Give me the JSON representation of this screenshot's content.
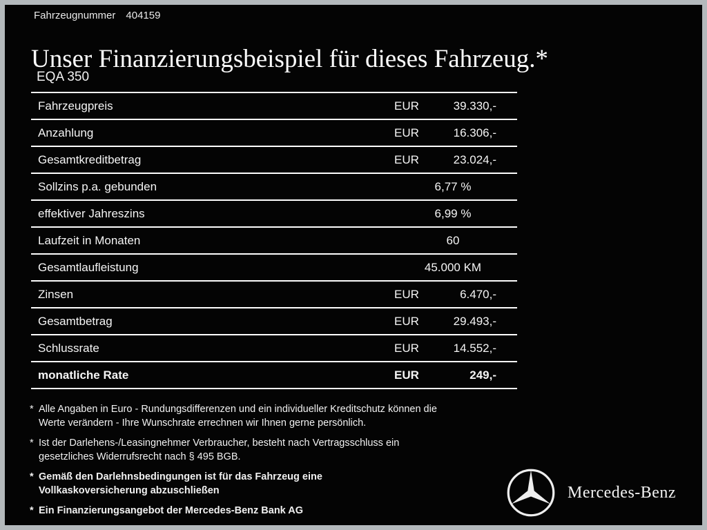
{
  "header": {
    "vehicle_number_label": "Fahrzeugnummer",
    "vehicle_number": "404159",
    "title": "Unser Finanzierungsbeispiel für dieses Fahrzeug.*",
    "model": "EQA 350"
  },
  "table": {
    "rows": [
      {
        "label": "Fahrzeugpreis",
        "currency": "EUR",
        "value": "39.330,-",
        "align": "right",
        "bold": false
      },
      {
        "label": "Anzahlung",
        "currency": "EUR",
        "value": "16.306,-",
        "align": "right",
        "bold": false
      },
      {
        "label": "Gesamtkreditbetrag",
        "currency": "EUR",
        "value": "23.024,-",
        "align": "right",
        "bold": false
      },
      {
        "label": "Sollzins p.a. gebunden",
        "value": "6,77 %",
        "align": "center",
        "bold": false
      },
      {
        "label": "effektiver Jahreszins",
        "value": "6,99 %",
        "align": "center",
        "bold": false
      },
      {
        "label": "Laufzeit in Monaten",
        "value": "60",
        "align": "center",
        "bold": false
      },
      {
        "label": "Gesamtlaufleistung",
        "value": "45.000 KM",
        "align": "center",
        "bold": false
      },
      {
        "label": "Zinsen",
        "currency": "EUR",
        "value": "6.470,-",
        "align": "right",
        "bold": false
      },
      {
        "label": "Gesamtbetrag",
        "currency": "EUR",
        "value": "29.493,-",
        "align": "right",
        "bold": false
      },
      {
        "label": "Schlussrate",
        "currency": "EUR",
        "value": "14.552,-",
        "align": "right",
        "bold": false
      },
      {
        "label": "monatliche Rate",
        "currency": "EUR",
        "value": "249,-",
        "align": "right",
        "bold": true
      }
    ]
  },
  "footnotes": [
    {
      "marker": "*",
      "text": "Alle Angaben in Euro - Rundungsdifferenzen und ein individueller Kreditschutz können die\nWerte verändern - Ihre Wunschrate errechnen wir Ihnen gerne persönlich.",
      "bold": false
    },
    {
      "marker": "*",
      "text": "Ist der Darlehens-/Leasingnehmer Verbraucher, besteht nach Vertragsschluss ein\ngesetzliches Widerrufsrecht nach § 495 BGB.",
      "bold": false
    },
    {
      "marker": "*",
      "text": "Gemäß den Darlehnsbedingungen ist für das Fahrzeug eine\nVollkaskoversicherung abzuschließen",
      "bold": true
    },
    {
      "marker": "*",
      "text": "Ein Finanzierungsangebot der Mercedes-Benz Bank AG",
      "bold": true
    }
  ],
  "brand": {
    "logo_icon": "mercedes-star-icon",
    "name": "Mercedes-Benz"
  },
  "colors": {
    "background": "#040404",
    "text": "#ffffff",
    "frame_border": "#b4b9bc",
    "divider_line": "#ffffff"
  }
}
